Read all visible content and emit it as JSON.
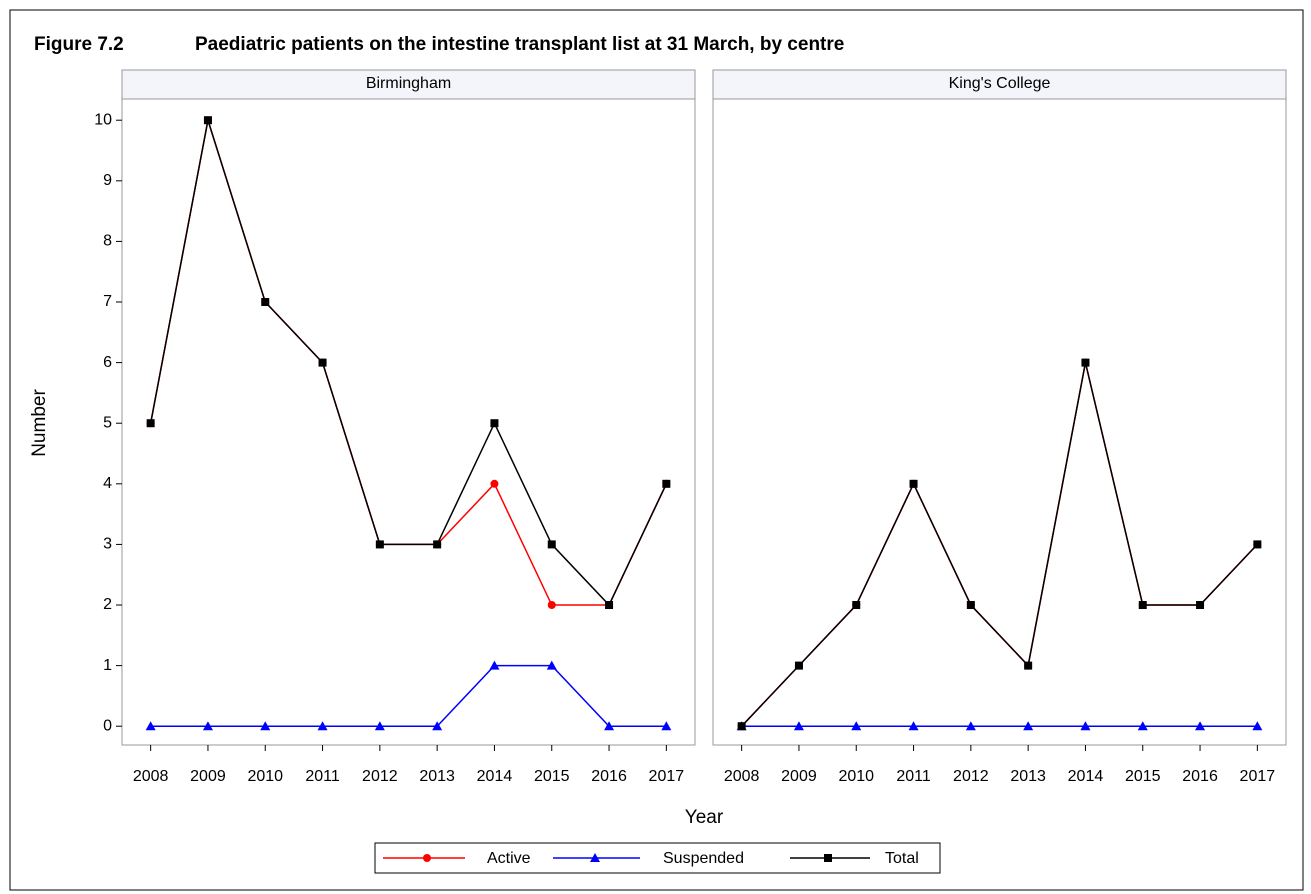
{
  "chart_data": {
    "type": "line",
    "figure_label": "Figure 7.2",
    "title": "Paediatric patients on the intestine transplant list at 31 March, by centre",
    "x_label": "Year",
    "y_label": "Number",
    "panels": [
      "Birmingham",
      "King's College"
    ],
    "categories": [
      "2008",
      "2009",
      "2010",
      "2011",
      "2012",
      "2013",
      "2014",
      "2015",
      "2016",
      "2017"
    ],
    "ylim": [
      -0.31,
      10.35
    ],
    "yticks": [
      0,
      1,
      2,
      3,
      4,
      5,
      6,
      7,
      8,
      9,
      10
    ],
    "series": [
      {
        "name": "Active",
        "color": "#ff0000",
        "marker": "circle",
        "values": [
          [
            5,
            10,
            7,
            6,
            3,
            3,
            4,
            2,
            2,
            4
          ],
          [
            0,
            1,
            2,
            4,
            2,
            1,
            6,
            2,
            2,
            3
          ]
        ]
      },
      {
        "name": "Suspended",
        "color": "#0000ff",
        "marker": "triangle",
        "values": [
          [
            0,
            0,
            0,
            0,
            0,
            0,
            1,
            1,
            0,
            0
          ],
          [
            0,
            0,
            0,
            0,
            0,
            0,
            0,
            0,
            0,
            0
          ]
        ]
      },
      {
        "name": "Total",
        "color": "#000000",
        "marker": "square",
        "values": [
          [
            5,
            10,
            7,
            6,
            3,
            3,
            5,
            3,
            2,
            4
          ],
          [
            0,
            1,
            2,
            4,
            2,
            1,
            6,
            2,
            2,
            3
          ]
        ]
      }
    ]
  }
}
